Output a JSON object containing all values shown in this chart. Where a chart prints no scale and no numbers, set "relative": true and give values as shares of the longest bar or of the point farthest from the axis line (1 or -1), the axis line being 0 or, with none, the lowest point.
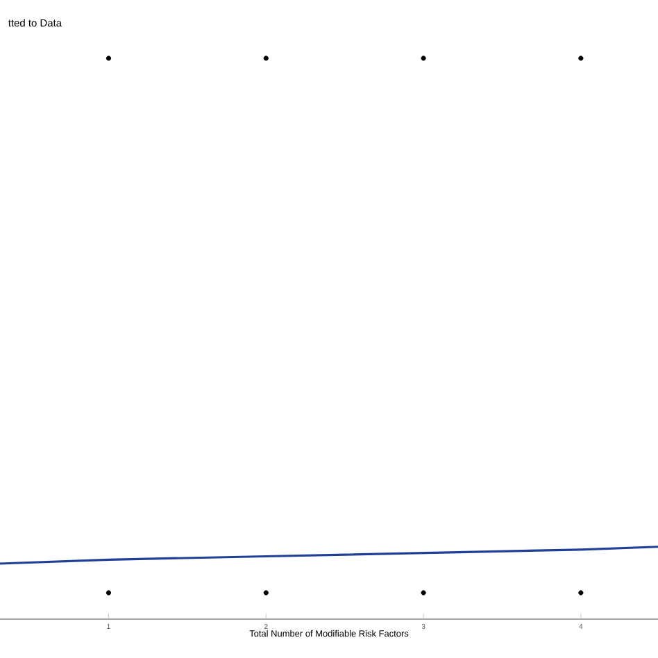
{
  "chart_data": {
    "type": "scatter",
    "title": "tted to Data",
    "xlabel": "Total Number of Modifiable Risk Factors",
    "relative": true,
    "xlim": [
      0.31,
      4.49
    ],
    "xticks": [
      1,
      2,
      3,
      4
    ],
    "marker": "circle",
    "grid": false,
    "series": [
      {
        "color": "#000000",
        "x": [
          1,
          2,
          3,
          4,
          1,
          2,
          3,
          4
        ],
        "values": [
          1,
          1,
          1,
          1,
          0.047,
          0.047,
          0.047,
          0.047
        ]
      },
      {
        "type": "line",
        "color": "#1f3f99",
        "marker": "none",
        "line_style": "solid",
        "x": [
          0.31,
          1,
          2,
          3,
          4,
          4.49
        ],
        "values": [
          0.099,
          0.106,
          0.112,
          0.118,
          0.124,
          0.129
        ]
      }
    ]
  }
}
